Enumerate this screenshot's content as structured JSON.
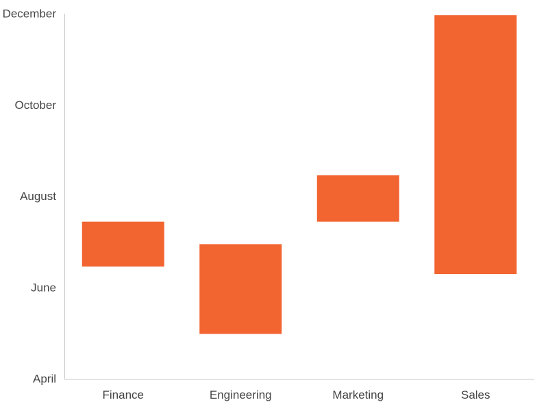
{
  "chart_data": {
    "type": "bar",
    "subtype": "floating-range",
    "orientation": "vertical",
    "title": "",
    "xlabel": "",
    "ylabel": "",
    "categories": [
      "Finance",
      "Engineering",
      "Marketing",
      "Sales"
    ],
    "ranges": [
      {
        "category": "Finance",
        "start": "2024-06-15",
        "end": "2024-07-15"
      },
      {
        "category": "Engineering",
        "start": "2024-05-01",
        "end": "2024-06-30"
      },
      {
        "category": "Marketing",
        "start": "2024-07-15",
        "end": "2024-08-15"
      },
      {
        "category": "Sales",
        "start": "2024-06-10",
        "end": "2024-11-30"
      }
    ],
    "y_axis": {
      "type": "time",
      "ylim": [
        "2024-04-01",
        "2024-12-01"
      ],
      "ticks": [
        {
          "value": "2024-04-01",
          "label": "April"
        },
        {
          "value": "2024-06-01",
          "label": "June"
        },
        {
          "value": "2024-08-01",
          "label": "August"
        },
        {
          "value": "2024-10-01",
          "label": "October"
        },
        {
          "value": "2024-12-01",
          "label": "December"
        }
      ]
    },
    "colors": {
      "bar": "#f26430",
      "axis": "#c8c8c8",
      "text": "#444444"
    },
    "grid": false,
    "legend": "none"
  }
}
